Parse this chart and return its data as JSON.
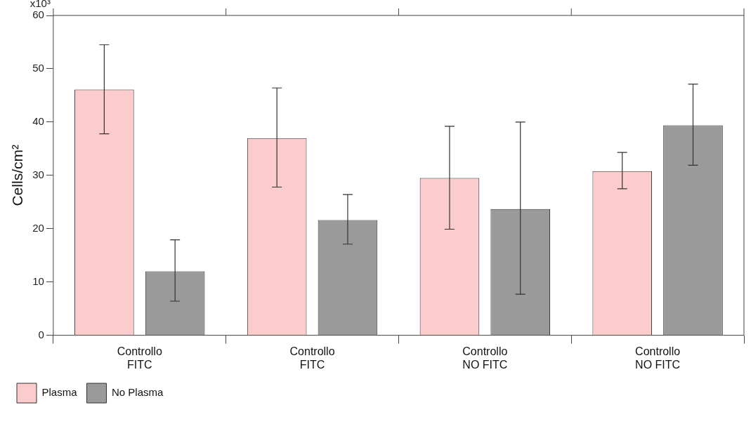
{
  "chart_data": {
    "type": "bar",
    "ylabel": "Cells/cm²",
    "categories": [
      "Controllo FITC",
      "Controllo FITC",
      "Controllo NO FITC",
      "Controllo NO FITC"
    ],
    "series": [
      {
        "name": "Plasma",
        "color": "#fccccc",
        "values": [
          46.1,
          37.0,
          29.5,
          30.8
        ],
        "errors": [
          [
            37.8,
            54.5
          ],
          [
            27.8,
            46.4
          ],
          [
            19.9,
            39.2
          ],
          [
            27.5,
            34.3
          ]
        ]
      },
      {
        "name": "No Plasma",
        "color": "#9a9a9a",
        "values": [
          12.0,
          21.6,
          23.7,
          39.4
        ],
        "errors": [
          [
            6.4,
            17.9
          ],
          [
            17.1,
            26.4
          ],
          [
            7.7,
            40.0
          ],
          [
            31.9,
            47.1
          ]
        ]
      }
    ],
    "ylim": [
      0,
      60
    ],
    "yticks": [
      0,
      10,
      20,
      30,
      40,
      50,
      60
    ],
    "annotations": [
      "x10³"
    ],
    "grid": false,
    "legend": "bottom left"
  }
}
